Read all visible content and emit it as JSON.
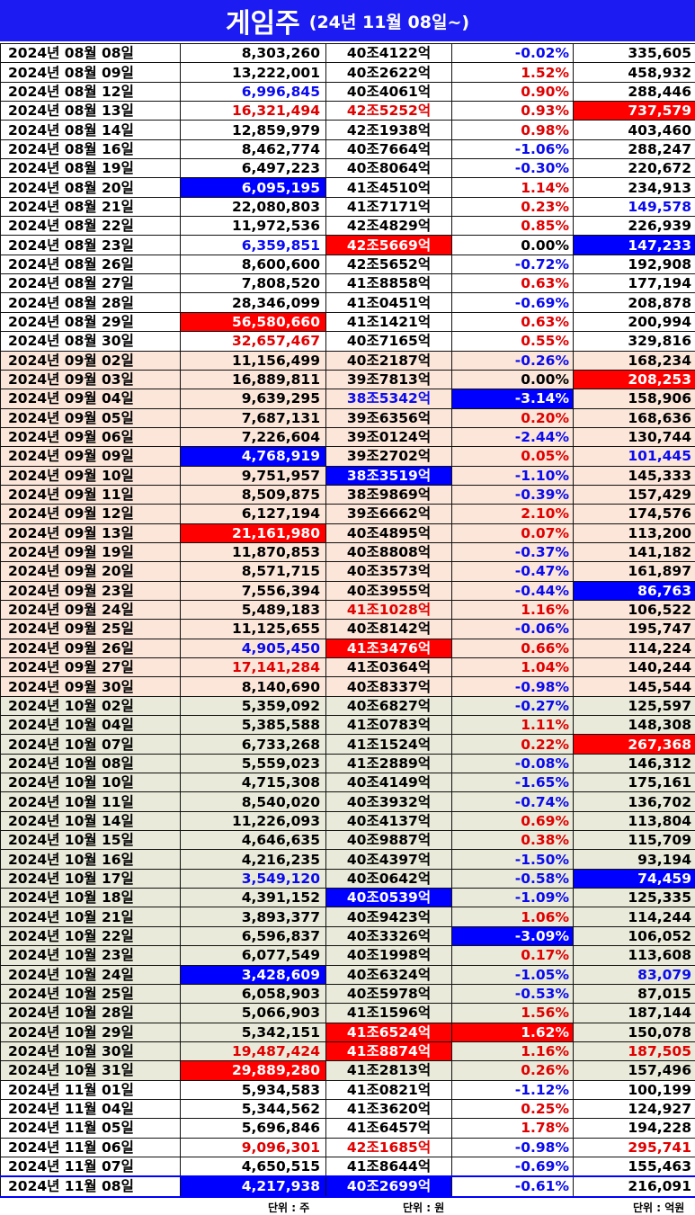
{
  "header": {
    "title": "게임주",
    "subtitle": "(24년 11월 08일~)"
  },
  "units": {
    "volume": "단위 : 주",
    "price": "단위 : 원",
    "value": "단위 : 억원"
  },
  "colors": {
    "title_bg": "#1c1cf2",
    "highlight_red": "#ff0000",
    "highlight_blue": "#0000ff",
    "sep_band": "#fbe6d9",
    "oct_band": "#e9ead9"
  },
  "rows": [
    {
      "group": "aug",
      "date": "2024년 08월 08일",
      "volume": "8,303,260",
      "price": "40조4122억",
      "change": "-0.02%",
      "value": "335,605"
    },
    {
      "group": "aug",
      "date": "2024년 08월 09일",
      "volume": "13,222,001",
      "price": "40조2622억",
      "change": "1.52%",
      "value": "458,932"
    },
    {
      "group": "aug",
      "date": "2024년 08월 12일",
      "volume": "6,996,845",
      "price": "40조4061억",
      "change": "0.90%",
      "value": "288,446",
      "vs": "t-blue"
    },
    {
      "group": "aug",
      "date": "2024년 08월 13일",
      "volume": "16,321,494",
      "price": "42조5252억",
      "change": "0.93%",
      "value": "737,579",
      "vs": "t-red",
      "ps": "t-red",
      "as": "bg-red"
    },
    {
      "group": "aug",
      "date": "2024년 08월 14일",
      "volume": "12,859,979",
      "price": "42조1938억",
      "change": "0.98%",
      "value": "403,460"
    },
    {
      "group": "aug",
      "date": "2024년 08월 16일",
      "volume": "8,462,774",
      "price": "40조7664억",
      "change": "-1.06%",
      "value": "288,247"
    },
    {
      "group": "aug",
      "date": "2024년 08월 19일",
      "volume": "6,497,223",
      "price": "40조8064억",
      "change": "-0.30%",
      "value": "220,672"
    },
    {
      "group": "aug",
      "date": "2024년 08월 20일",
      "volume": "6,095,195",
      "price": "41조4510억",
      "change": "1.14%",
      "value": "234,913",
      "vs": "bg-blue"
    },
    {
      "group": "aug",
      "date": "2024년 08월 21일",
      "volume": "22,080,803",
      "price": "41조7171억",
      "change": "0.23%",
      "value": "149,578",
      "as": "t-blue"
    },
    {
      "group": "aug",
      "date": "2024년 08월 22일",
      "volume": "11,972,536",
      "price": "42조4829억",
      "change": "0.85%",
      "value": "226,939"
    },
    {
      "group": "aug",
      "date": "2024년 08월 23일",
      "volume": "6,359,851",
      "price": "42조5669억",
      "change": "0.00%",
      "value": "147,233",
      "vs": "t-blue",
      "ps": "bg-red",
      "as": "bg-blue"
    },
    {
      "group": "aug",
      "date": "2024년 08월 26일",
      "volume": "8,600,600",
      "price": "42조5652억",
      "change": "-0.72%",
      "value": "192,908"
    },
    {
      "group": "aug",
      "date": "2024년 08월 27일",
      "volume": "7,808,520",
      "price": "41조8858억",
      "change": "0.63%",
      "value": "177,194"
    },
    {
      "group": "aug",
      "date": "2024년 08월 28일",
      "volume": "28,346,099",
      "price": "41조0451억",
      "change": "-0.69%",
      "value": "208,878"
    },
    {
      "group": "aug",
      "date": "2024년 08월 29일",
      "volume": "56,580,660",
      "price": "41조1421억",
      "change": "0.63%",
      "value": "200,994",
      "vs": "bg-red"
    },
    {
      "group": "aug",
      "date": "2024년 08월 30일",
      "volume": "32,657,467",
      "price": "40조7165억",
      "change": "0.55%",
      "value": "329,816",
      "vs": "t-red"
    },
    {
      "group": "sep",
      "date": "2024년 09월 02일",
      "volume": "11,156,499",
      "price": "40조2187억",
      "change": "-0.26%",
      "value": "168,234"
    },
    {
      "group": "sep",
      "date": "2024년 09월 03일",
      "volume": "16,889,811",
      "price": "39조7813억",
      "change": "0.00%",
      "value": "208,253",
      "as": "bg-red"
    },
    {
      "group": "sep",
      "date": "2024년 09월 04일",
      "volume": "9,639,295",
      "price": "38조5342억",
      "change": "-3.14%",
      "value": "158,906",
      "ps": "t-blue",
      "cs": "bg-blue"
    },
    {
      "group": "sep",
      "date": "2024년 09월 05일",
      "volume": "7,687,131",
      "price": "39조6356억",
      "change": "0.20%",
      "value": "168,636"
    },
    {
      "group": "sep",
      "date": "2024년 09월 06일",
      "volume": "7,226,604",
      "price": "39조0124억",
      "change": "-2.44%",
      "value": "130,744"
    },
    {
      "group": "sep",
      "date": "2024년 09월 09일",
      "volume": "4,768,919",
      "price": "39조2702억",
      "change": "0.05%",
      "value": "101,445",
      "vs": "bg-blue",
      "as": "t-blue"
    },
    {
      "group": "sep",
      "date": "2024년 09월 10일",
      "volume": "9,751,957",
      "price": "38조3519억",
      "change": "-1.10%",
      "value": "145,333",
      "ps": "bg-blue"
    },
    {
      "group": "sep",
      "date": "2024년 09월 11일",
      "volume": "8,509,875",
      "price": "38조9869억",
      "change": "-0.39%",
      "value": "157,429"
    },
    {
      "group": "sep",
      "date": "2024년 09월 12일",
      "volume": "6,127,194",
      "price": "39조6662억",
      "change": "2.10%",
      "value": "174,576"
    },
    {
      "group": "sep",
      "date": "2024년 09월 13일",
      "volume": "21,161,980",
      "price": "40조4895억",
      "change": "0.07%",
      "value": "113,200",
      "vs": "bg-red"
    },
    {
      "group": "sep",
      "date": "2024년 09월 19일",
      "volume": "11,870,853",
      "price": "40조8808억",
      "change": "-0.37%",
      "value": "141,182"
    },
    {
      "group": "sep",
      "date": "2024년 09월 20일",
      "volume": "8,571,715",
      "price": "40조3573억",
      "change": "-0.47%",
      "value": "161,897"
    },
    {
      "group": "sep",
      "date": "2024년 09월 23일",
      "volume": "7,556,394",
      "price": "40조3955억",
      "change": "-0.44%",
      "value": "86,763",
      "as": "bg-blue"
    },
    {
      "group": "sep",
      "date": "2024년 09월 24일",
      "volume": "5,489,183",
      "price": "41조1028억",
      "change": "1.16%",
      "value": "106,522",
      "ps": "t-red"
    },
    {
      "group": "sep",
      "date": "2024년 09월 25일",
      "volume": "11,125,655",
      "price": "40조8142억",
      "change": "-0.06%",
      "value": "195,747"
    },
    {
      "group": "sep",
      "date": "2024년 09월 26일",
      "volume": "4,905,450",
      "price": "41조3476억",
      "change": "0.66%",
      "value": "114,224",
      "vs": "t-blue",
      "ps": "bg-red"
    },
    {
      "group": "sep",
      "date": "2024년 09월 27일",
      "volume": "17,141,284",
      "price": "41조0364억",
      "change": "1.04%",
      "value": "140,244",
      "vs": "t-red"
    },
    {
      "group": "sep",
      "date": "2024년 09월 30일",
      "volume": "8,140,690",
      "price": "40조8337억",
      "change": "-0.98%",
      "value": "145,544"
    },
    {
      "group": "oct",
      "date": "2024년 10월 02일",
      "volume": "5,359,092",
      "price": "40조6827억",
      "change": "-0.27%",
      "value": "125,597"
    },
    {
      "group": "oct",
      "date": "2024년 10월 04일",
      "volume": "5,385,588",
      "price": "41조0783억",
      "change": "1.11%",
      "value": "148,308"
    },
    {
      "group": "oct",
      "date": "2024년 10월 07일",
      "volume": "6,733,268",
      "price": "41조1524억",
      "change": "0.22%",
      "value": "267,368",
      "as": "bg-red"
    },
    {
      "group": "oct",
      "date": "2024년 10월 08일",
      "volume": "5,559,023",
      "price": "41조2889억",
      "change": "-0.08%",
      "value": "146,312"
    },
    {
      "group": "oct",
      "date": "2024년 10월 10일",
      "volume": "4,715,308",
      "price": "40조4149억",
      "change": "-1.65%",
      "value": "175,161"
    },
    {
      "group": "oct",
      "date": "2024년 10월 11일",
      "volume": "8,540,020",
      "price": "40조3932억",
      "change": "-0.74%",
      "value": "136,702"
    },
    {
      "group": "oct",
      "date": "2024년 10월 14일",
      "volume": "11,226,093",
      "price": "40조4137억",
      "change": "0.69%",
      "value": "113,804"
    },
    {
      "group": "oct",
      "date": "2024년 10월 15일",
      "volume": "4,646,635",
      "price": "40조9887억",
      "change": "0.38%",
      "value": "115,709"
    },
    {
      "group": "oct",
      "date": "2024년 10월 16일",
      "volume": "4,216,235",
      "price": "40조4397억",
      "change": "-1.50%",
      "value": "93,194"
    },
    {
      "group": "oct",
      "date": "2024년 10월 17일",
      "volume": "3,549,120",
      "price": "40조0642억",
      "change": "-0.58%",
      "value": "74,459",
      "vs": "t-blue",
      "as": "bg-blue"
    },
    {
      "group": "oct",
      "date": "2024년 10월 18일",
      "volume": "4,391,152",
      "price": "40조0539억",
      "change": "-1.09%",
      "value": "125,335",
      "ps": "bg-blue"
    },
    {
      "group": "oct",
      "date": "2024년 10월 21일",
      "volume": "3,893,377",
      "price": "40조9423억",
      "change": "1.06%",
      "value": "114,244"
    },
    {
      "group": "oct",
      "date": "2024년 10월 22일",
      "volume": "6,596,837",
      "price": "40조3326억",
      "change": "-3.09%",
      "value": "106,052",
      "cs": "bg-blue"
    },
    {
      "group": "oct",
      "date": "2024년 10월 23일",
      "volume": "6,077,549",
      "price": "40조1998억",
      "change": "0.17%",
      "value": "113,608"
    },
    {
      "group": "oct",
      "date": "2024년 10월 24일",
      "volume": "3,428,609",
      "price": "40조6324억",
      "change": "-1.05%",
      "value": "83,079",
      "vs": "bg-blue",
      "as": "t-blue"
    },
    {
      "group": "oct",
      "date": "2024년 10월 25일",
      "volume": "6,058,903",
      "price": "40조5978억",
      "change": "-0.53%",
      "value": "87,015"
    },
    {
      "group": "oct",
      "date": "2024년 10월 28일",
      "volume": "5,066,903",
      "price": "41조1596억",
      "change": "1.56%",
      "value": "187,144"
    },
    {
      "group": "oct",
      "date": "2024년 10월 29일",
      "volume": "5,342,151",
      "price": "41조6524억",
      "change": "1.62%",
      "value": "150,078",
      "ps": "bg-red",
      "cs": "bg-red"
    },
    {
      "group": "oct",
      "date": "2024년 10월 30일",
      "volume": "19,487,424",
      "price": "41조8874억",
      "change": "1.16%",
      "value": "187,505",
      "vs": "t-red",
      "ps": "bg-red",
      "as": "t-red"
    },
    {
      "group": "oct",
      "date": "2024년 10월 31일",
      "volume": "29,889,280",
      "price": "41조2813억",
      "change": "0.26%",
      "value": "157,496",
      "vs": "bg-red"
    },
    {
      "group": "nov",
      "date": "2024년 11월 01일",
      "volume": "5,934,583",
      "price": "41조0821억",
      "change": "-1.12%",
      "value": "100,199"
    },
    {
      "group": "nov",
      "date": "2024년 11월 04일",
      "volume": "5,344,562",
      "price": "41조3620억",
      "change": "0.25%",
      "value": "124,927"
    },
    {
      "group": "nov",
      "date": "2024년 11월 05일",
      "volume": "5,696,846",
      "price": "41조6457억",
      "change": "1.78%",
      "value": "194,228"
    },
    {
      "group": "nov",
      "date": "2024년 11월 06일",
      "volume": "9,096,301",
      "price": "42조1685억",
      "change": "-0.98%",
      "value": "295,741",
      "vs": "t-red",
      "ps": "t-red",
      "as": "t-red"
    },
    {
      "group": "nov",
      "date": "2024년 11월 07일",
      "volume": "4,650,515",
      "price": "41조8644억",
      "change": "-0.69%",
      "value": "155,463"
    },
    {
      "group": "nov",
      "date": "2024년 11월 08일",
      "volume": "4,217,938",
      "price": "40조2699억",
      "change": "-0.61%",
      "value": "216,091",
      "vs": "bg-blue",
      "ps": "bg-blue",
      "last": true
    }
  ]
}
